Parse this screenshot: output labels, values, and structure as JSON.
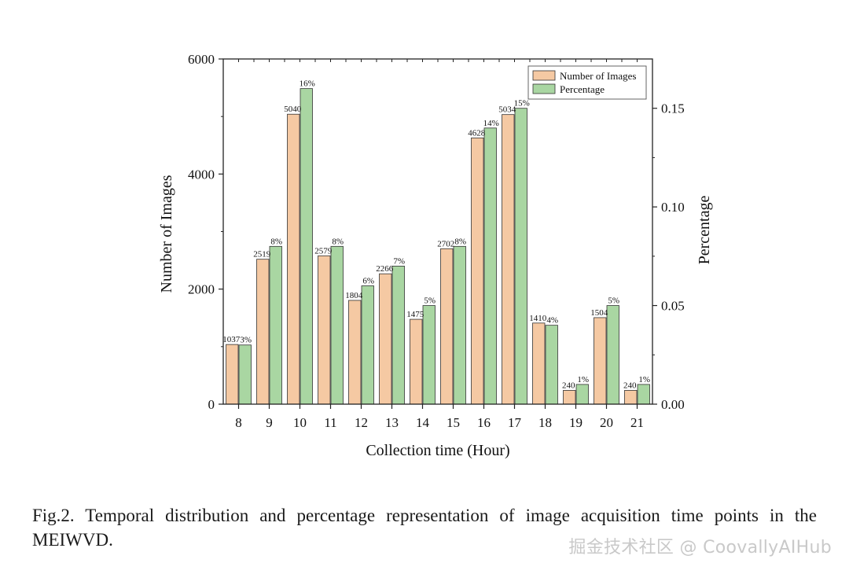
{
  "chart_data": {
    "type": "bar",
    "title": "",
    "xlabel": "Collection time (Hour)",
    "ylabel": "Number of Images",
    "y2label": "Percentage",
    "categories": [
      "8",
      "9",
      "10",
      "11",
      "12",
      "13",
      "14",
      "15",
      "16",
      "17",
      "18",
      "19",
      "20",
      "21"
    ],
    "ylim": [
      0,
      6000
    ],
    "y2lim": [
      0,
      0.175
    ],
    "yticks": [
      "0",
      "2000",
      "4000",
      "6000"
    ],
    "y2ticks": [
      "0.00",
      "0.05",
      "0.10",
      "0.15"
    ],
    "ytick_values": [
      0,
      2000,
      4000,
      6000
    ],
    "y2tick_values": [
      0,
      0.05,
      0.1,
      0.15
    ],
    "legend_position": "top-right",
    "series": [
      {
        "name": "Number of Images",
        "axis": "left",
        "color": "#f5c9a3",
        "values": [
          1037,
          2519,
          5040,
          2579,
          1804,
          2266,
          1475,
          2702,
          4628,
          5034,
          1410,
          240,
          1504,
          240
        ],
        "labels": [
          "1037",
          "2519",
          "5040",
          "2579",
          "1804",
          "2266",
          "1475",
          "2702",
          "4628",
          "5034",
          "1410",
          "240",
          "1504",
          "240"
        ]
      },
      {
        "name": "Percentage",
        "axis": "right",
        "color": "#a9d6a2",
        "values": [
          0.03,
          0.08,
          0.16,
          0.08,
          0.06,
          0.07,
          0.05,
          0.08,
          0.14,
          0.15,
          0.04,
          0.01,
          0.05,
          0.01
        ],
        "labels": [
          "3%",
          "8%",
          "16%",
          "8%",
          "6%",
          "7%",
          "5%",
          "8%",
          "14%",
          "15%",
          "4%",
          "1%",
          "5%",
          "1%"
        ]
      }
    ]
  },
  "caption": "Fig.2.  Temporal distribution and percentage representation of image acquisition time points in the MEIWVD.",
  "watermark": "掘金技术社区 @ CoovallyAIHub"
}
